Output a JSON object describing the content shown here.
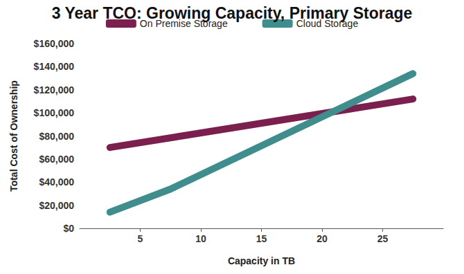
{
  "chart_data": {
    "type": "line",
    "title": "3 Year TCO: Growing Capacity, Primary Storage",
    "x_label": "Capacity in TB",
    "y_label": "Total Cost of Ownership",
    "series": [
      {
        "name": "On Premise Storage",
        "color": "#7b1f4f",
        "x": [
          2.5,
          27.5
        ],
        "values": [
          70000,
          112000
        ]
      },
      {
        "name": "Cloud Storage",
        "color": "#3f8e8d",
        "x": [
          2.5,
          7.5,
          27.5
        ],
        "values": [
          14000,
          34000,
          134000
        ]
      }
    ],
    "xlim": [
      0,
      30
    ],
    "xticks": [
      5,
      10,
      15,
      20,
      25
    ],
    "ylim": [
      0,
      160000
    ],
    "yticks": [
      {
        "value": 0,
        "label": "$0"
      },
      {
        "value": 20000,
        "label": "$20,000"
      },
      {
        "value": 40000,
        "label": "$40,000"
      },
      {
        "value": 60000,
        "label": "$60,000"
      },
      {
        "value": 80000,
        "label": "$80,000"
      },
      {
        "value": 100000,
        "label": "$100,000"
      },
      {
        "value": 120000,
        "label": "$120,000"
      },
      {
        "value": 140000,
        "label": "$140,000"
      },
      {
        "value": 160000,
        "label": "$160,000"
      }
    ],
    "grid": false,
    "legend": "top"
  }
}
